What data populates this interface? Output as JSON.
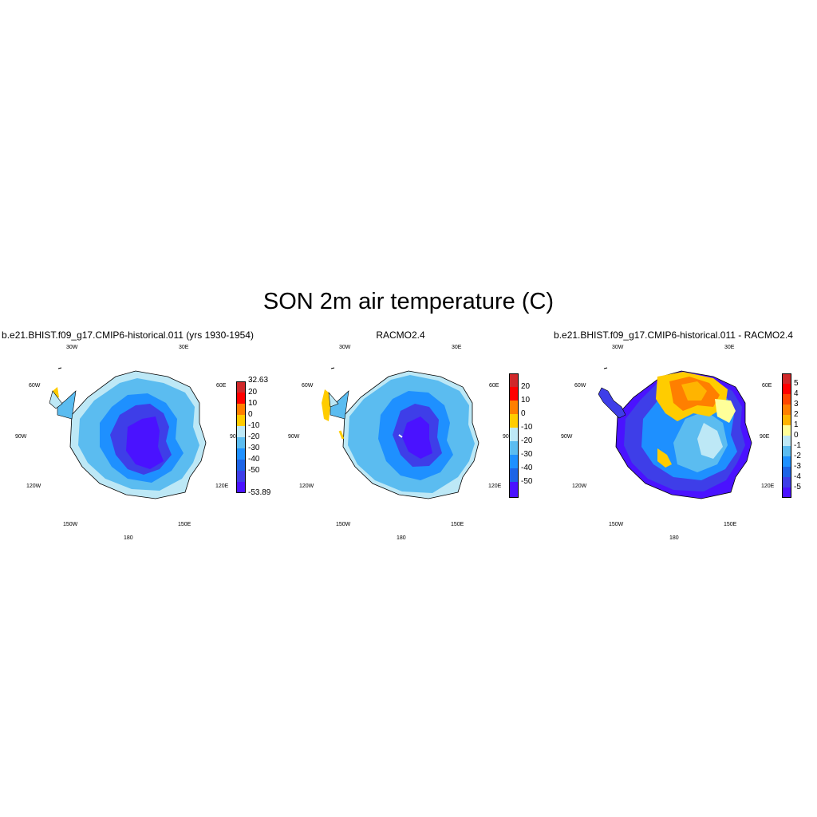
{
  "title": "SON 2m air temperature (C)",
  "map_labels": {
    "lon_30w": "30W",
    "lon_30e": "30E",
    "lon_60w": "60W",
    "lon_60e": "60E",
    "lon_90w": "90W",
    "lon_90e": "90E",
    "lon_120w": "120W",
    "lon_120e": "120E",
    "lon_150w": "150W",
    "lon_150e": "150E",
    "lon_180": "180"
  },
  "panels": [
    {
      "title": "b.e21.BHIST.f09_g17.CMIP6-historical.011 (yrs 1930-1954)",
      "colorbar": {
        "labels": [
          "32.63",
          "20",
          "10",
          "0",
          "-10",
          "-20",
          "-30",
          "-40",
          "-50",
          "-53.89"
        ],
        "colors": [
          "#d0282a",
          "#ff0000",
          "#ff7f00",
          "#ffcc00",
          "#bde8f6",
          "#5bbcf0",
          "#1e90ff",
          "#1d64e6",
          "#3e3ee8",
          "#4a12ff"
        ]
      }
    },
    {
      "title": "RACMO2.4",
      "colorbar": {
        "labels": [
          "20",
          "10",
          "0",
          "-10",
          "-20",
          "-30",
          "-40",
          "-50"
        ],
        "colors": [
          "#d0282a",
          "#ff0000",
          "#ff7f00",
          "#ffcc00",
          "#bde8f6",
          "#5bbcf0",
          "#1e90ff",
          "#1d64e6",
          "#4a12ff"
        ]
      }
    },
    {
      "title": "b.e21.BHIST.f09_g17.CMIP6-historical.011 - RACMO2.4",
      "colorbar": {
        "labels": [
          "5",
          "4",
          "3",
          "2",
          "1",
          "0",
          "-1",
          "-2",
          "-3",
          "-4",
          "-5"
        ],
        "colors": [
          "#d0282a",
          "#ff0000",
          "#ff4500",
          "#ff7f00",
          "#ffb400",
          "#ffff99",
          "#bde8f6",
          "#5bbcf0",
          "#1e90ff",
          "#1d64e6",
          "#3e3ee8",
          "#4a12ff"
        ]
      }
    }
  ]
}
